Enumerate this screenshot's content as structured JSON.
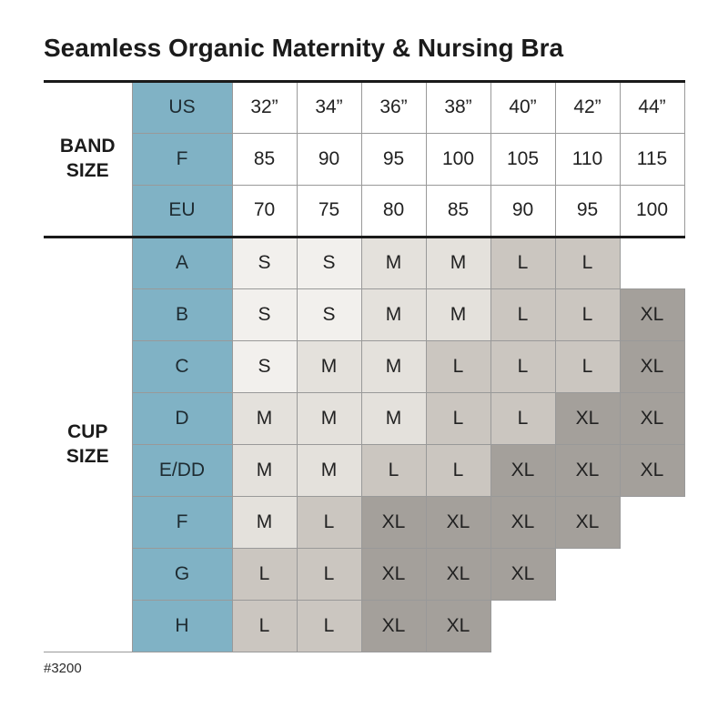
{
  "page": {
    "title": "Seamless Organic Maternity & Nursing Bra",
    "footnote": "#3200"
  },
  "colors": {
    "row_header_bg": "#80b2c5",
    "cell_S": "#f2f0ed",
    "cell_M": "#e4e1dc",
    "cell_L": "#cbc6c0",
    "cell_XL": "#a4a09b",
    "cell_blank": "#ffffff",
    "grid_line": "#999999",
    "section_divider": "#1a1a1a",
    "text": "#222222"
  },
  "chart_data": {
    "type": "table",
    "title": "Seamless Organic Maternity & Nursing Bra",
    "sections": [
      {
        "id": "band-size",
        "label": "BAND SIZE",
        "rows": [
          {
            "header": "US",
            "values": [
              "32”",
              "34”",
              "36”",
              "38”",
              "40”",
              "42”",
              "44”"
            ]
          },
          {
            "header": "F",
            "values": [
              "85",
              "90",
              "95",
              "100",
              "105",
              "110",
              "115"
            ]
          },
          {
            "header": "EU",
            "values": [
              "70",
              "75",
              "80",
              "85",
              "90",
              "95",
              "100"
            ]
          }
        ]
      },
      {
        "id": "cup-size",
        "label": "CUP SIZE",
        "rows": [
          {
            "header": "A",
            "values": [
              "S",
              "S",
              "M",
              "M",
              "L",
              "L",
              ""
            ]
          },
          {
            "header": "B",
            "values": [
              "S",
              "S",
              "M",
              "M",
              "L",
              "L",
              "XL"
            ]
          },
          {
            "header": "C",
            "values": [
              "S",
              "M",
              "M",
              "L",
              "L",
              "L",
              "XL"
            ]
          },
          {
            "header": "D",
            "values": [
              "M",
              "M",
              "M",
              "L",
              "L",
              "XL",
              "XL"
            ]
          },
          {
            "header": "E/DD",
            "values": [
              "M",
              "M",
              "L",
              "L",
              "XL",
              "XL",
              "XL"
            ]
          },
          {
            "header": "F",
            "values": [
              "M",
              "L",
              "XL",
              "XL",
              "XL",
              "XL",
              ""
            ]
          },
          {
            "header": "G",
            "values": [
              "L",
              "L",
              "XL",
              "XL",
              "XL",
              "",
              ""
            ]
          },
          {
            "header": "H",
            "values": [
              "L",
              "L",
              "XL",
              "XL",
              "",
              "",
              ""
            ]
          }
        ]
      }
    ]
  }
}
